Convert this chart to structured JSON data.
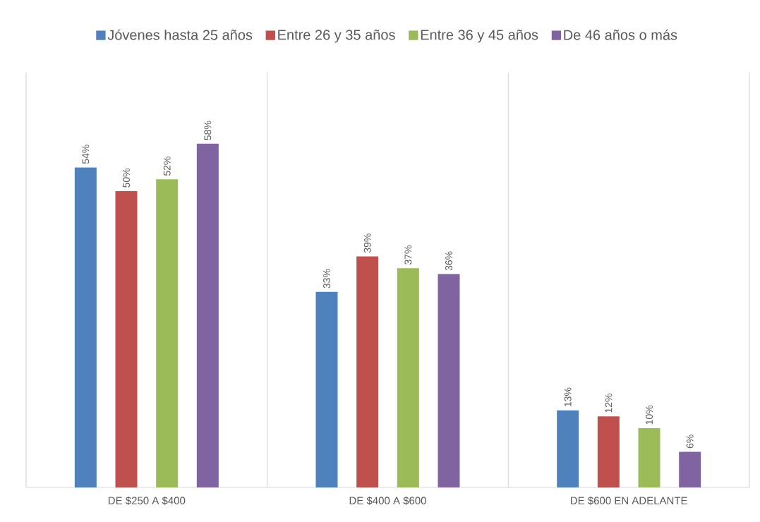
{
  "chart_data": {
    "type": "bar",
    "categories": [
      "DE $250 A $400",
      "DE $400 A $600",
      "DE $600 EN ADELANTE"
    ],
    "series": [
      {
        "name": "Jóvenes hasta 25 años",
        "color": "#4f81bd",
        "values": [
          54,
          33,
          13
        ],
        "value_labels": [
          "54%",
          "33%",
          "13%"
        ]
      },
      {
        "name": "Entre 26 y 35 años",
        "color": "#c0504d",
        "values": [
          50,
          39,
          12
        ],
        "value_labels": [
          "50%",
          "39%",
          "12%"
        ]
      },
      {
        "name": "Entre 36 y 45 años",
        "color": "#9bbb59",
        "values": [
          52,
          37,
          10
        ],
        "value_labels": [
          "52%",
          "37%",
          "10%"
        ]
      },
      {
        "name": "De 46 años o más",
        "color": "#8064a2",
        "values": [
          58,
          36,
          6
        ],
        "value_labels": [
          "58%",
          "36%",
          "6%"
        ]
      }
    ],
    "ylim": [
      0,
      70
    ],
    "tick_labels": "x",
    "grid": "x",
    "legend": "top"
  }
}
